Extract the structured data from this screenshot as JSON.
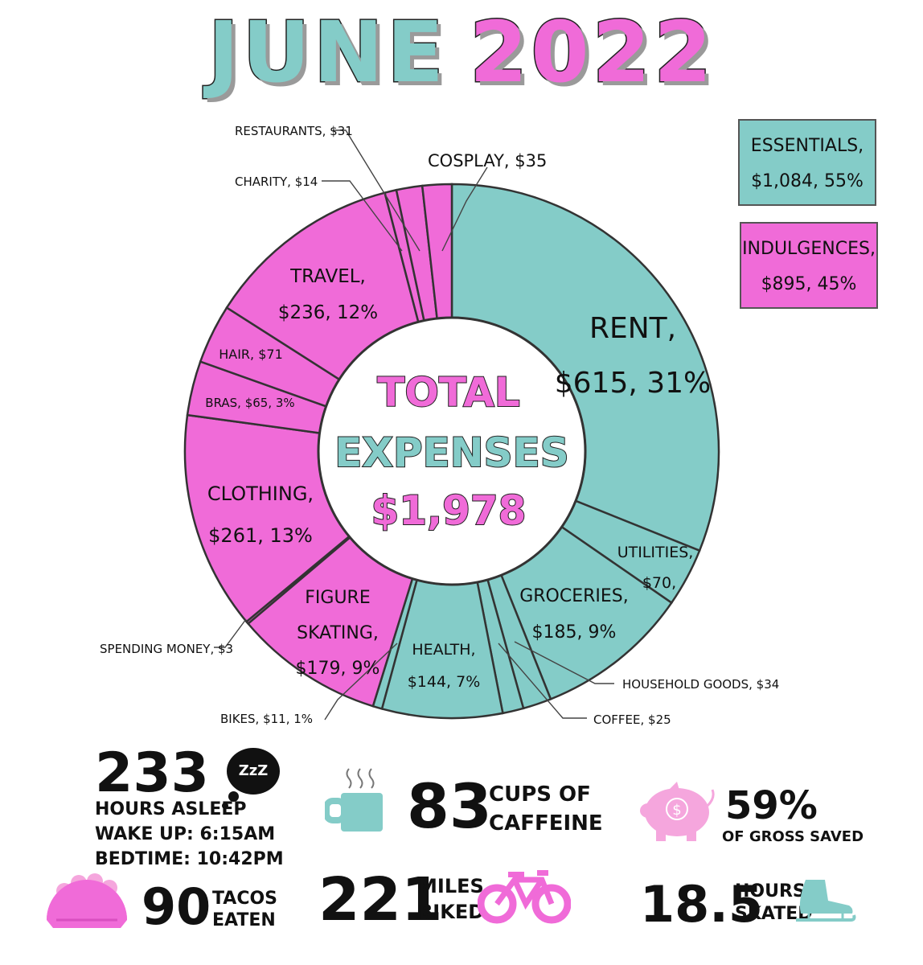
{
  "header": {
    "title_month": "JUNE",
    "title_year": "2022"
  },
  "legend": {
    "essentials": {
      "line1": "ESSENTIALS,",
      "line2": "$1,084, 55%",
      "color": "#84ccc8"
    },
    "indulgences": {
      "line1": "INDULGENCES,",
      "line2": "$895, 45%",
      "color": "#f06bd8"
    }
  },
  "center": {
    "line1": "TOTAL",
    "line2": "EXPENSES",
    "line3": "$1,978"
  },
  "chart_data": {
    "type": "pie",
    "title": "JUNE 2022",
    "total": 1978,
    "slices": [
      {
        "label": "Rent",
        "value": 615,
        "group": "Essentials"
      },
      {
        "label": "Utilities",
        "value": 70,
        "group": "Essentials"
      },
      {
        "label": "Groceries",
        "value": 185,
        "group": "Essentials"
      },
      {
        "label": "Household Goods",
        "value": 34,
        "group": "Essentials"
      },
      {
        "label": "Coffee",
        "value": 25,
        "group": "Essentials"
      },
      {
        "label": "Health",
        "value": 144,
        "group": "Essentials"
      },
      {
        "label": "Bikes",
        "value": 11,
        "group": "Essentials"
      },
      {
        "label": "Figure Skating",
        "value": 179,
        "group": "Indulgences"
      },
      {
        "label": "Spending Money",
        "value": 3,
        "group": "Indulgences"
      },
      {
        "label": "Clothing",
        "value": 261,
        "group": "Indulgences"
      },
      {
        "label": "Bras",
        "value": 65,
        "group": "Indulgences"
      },
      {
        "label": "Hair",
        "value": 71,
        "group": "Indulgences"
      },
      {
        "label": "Travel",
        "value": 236,
        "group": "Indulgences"
      },
      {
        "label": "Charity",
        "value": 14,
        "group": "Indulgences"
      },
      {
        "label": "Restaurants",
        "value": 31,
        "group": "Indulgences"
      },
      {
        "label": "Cosplay",
        "value": 35,
        "group": "Indulgences"
      }
    ],
    "slice_labels": {
      "rent": [
        "RENT,",
        "$615, 31%"
      ],
      "utilities": [
        "UTILITIES,",
        "$70,"
      ],
      "groceries": [
        "GROCERIES,",
        "$185, 9%"
      ],
      "health": [
        "HEALTH,",
        "$144, 7%"
      ],
      "figure_skating": [
        "FIGURE",
        "SKATING,",
        "$179, 9%"
      ],
      "clothing": [
        "CLOTHING,",
        "$261, 13%"
      ],
      "bras": [
        "BRAS, $65, 3%"
      ],
      "hair": [
        "HAIR, $71"
      ],
      "travel": [
        "TRAVEL,",
        "$236, 12%"
      ],
      "cosplay": [
        "COSPLAY, $35"
      ],
      "restaurants": [
        "RESTAURANTS, $31"
      ],
      "charity": [
        "CHARITY, $14"
      ],
      "spending_money": [
        "SPENDING MONEY, $3"
      ],
      "bikes": [
        "BIKES, $11, 1%"
      ],
      "household_goods": [
        "HOUSEHOLD GOODS, $34"
      ],
      "coffee": [
        "COFFEE, $25"
      ]
    },
    "colors": {
      "essentials": "#84ccc8",
      "indulgences": "#f06bd8",
      "outline": "#333333"
    }
  },
  "stats": {
    "sleep": {
      "value": "233",
      "label": "HOURS ASLEEP",
      "wake": "WAKE UP:  6:15AM",
      "bed": "BEDTIME: 10:42PM",
      "icon_text": "ZzZ"
    },
    "caffeine": {
      "value": "83",
      "label1": "CUPS OF",
      "label2": "CAFFEINE"
    },
    "saved": {
      "value": "59%",
      "label": "OF GROSS SAVED",
      "icon_text": "$"
    },
    "tacos": {
      "value": "90",
      "label1": "TACOS",
      "label2": "EATEN"
    },
    "miles": {
      "value": "221",
      "label1": "MILES",
      "label2": "BIKED"
    },
    "skated": {
      "value": "18.5",
      "label1": "HOURS",
      "label2": "SKATED"
    }
  }
}
